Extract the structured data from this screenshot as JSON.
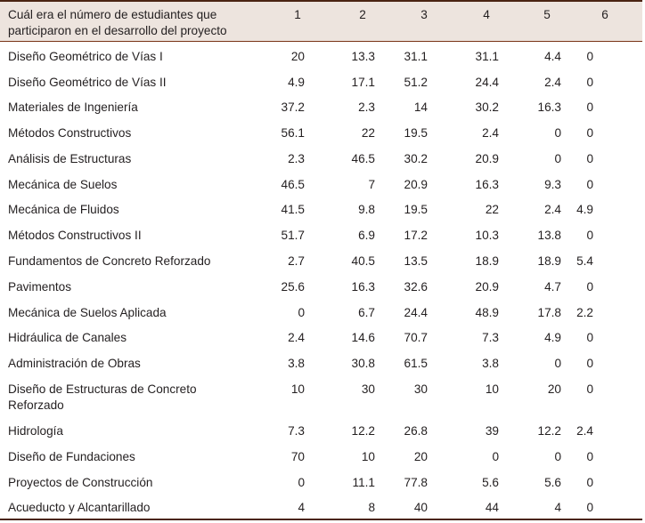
{
  "table": {
    "header": {
      "question": "Cuál era el número de estudiantes que participaron en  el desarrollo del proyecto",
      "question_line1": "Cuál era el número de estudiantes que",
      "question_line2": "participaron en  el desarrollo del proyecto",
      "columns": [
        "1",
        "2",
        "3",
        "4",
        "5",
        "6"
      ]
    },
    "rows": [
      {
        "label": "Diseño Geométrico de Vías I",
        "values": [
          "20",
          "13.3",
          "31.1",
          "31.1",
          "4.4",
          "0"
        ]
      },
      {
        "label": "Diseño Geométrico de Vías II",
        "values": [
          "4.9",
          "17.1",
          "51.2",
          "24.4",
          "2.4",
          "0"
        ]
      },
      {
        "label": "Materiales de Ingeniería",
        "values": [
          "37.2",
          "2.3",
          "14",
          "30.2",
          "16.3",
          "0"
        ]
      },
      {
        "label": "Métodos Constructivos",
        "values": [
          "56.1",
          "22",
          "19.5",
          "2.4",
          "0",
          "0"
        ]
      },
      {
        "label": "Análisis de Estructuras",
        "values": [
          "2.3",
          "46.5",
          "30.2",
          "20.9",
          "0",
          "0"
        ]
      },
      {
        "label": "Mecánica de Suelos",
        "values": [
          "46.5",
          "7",
          "20.9",
          "16.3",
          "9.3",
          "0"
        ]
      },
      {
        "label": "Mecánica de Fluidos",
        "values": [
          "41.5",
          "9.8",
          "19.5",
          "22",
          "2.4",
          "4.9"
        ]
      },
      {
        "label": "Métodos Constructivos II",
        "values": [
          "51.7",
          "6.9",
          "17.2",
          "10.3",
          "13.8",
          "0"
        ]
      },
      {
        "label": "Fundamentos de Concreto Reforzado",
        "values": [
          "2.7",
          "40.5",
          "13.5",
          "18.9",
          "18.9",
          "5.4"
        ]
      },
      {
        "label": "Pavimentos",
        "values": [
          "25.6",
          "16.3",
          "32.6",
          "20.9",
          "4.7",
          "0"
        ]
      },
      {
        "label": "Mecánica de Suelos Aplicada",
        "values": [
          "0",
          "6.7",
          "24.4",
          "48.9",
          "17.8",
          "2.2"
        ]
      },
      {
        "label": "Hidráulica de Canales",
        "values": [
          "2.4",
          "14.6",
          "70.7",
          "7.3",
          "4.9",
          "0"
        ]
      },
      {
        "label": "Administración de Obras",
        "values": [
          "3.8",
          "30.8",
          "61.5",
          "3.8",
          "0",
          "0"
        ]
      },
      {
        "label": "Diseño de Estructuras de Concreto",
        "label_line2": "Reforzado",
        "values": [
          "10",
          "30",
          "30",
          "10",
          "20",
          "0"
        ]
      },
      {
        "label": "Hidrología",
        "values": [
          "7.3",
          "12.2",
          "26.8",
          "39",
          "12.2",
          "2.4"
        ]
      },
      {
        "label": "Diseño de Fundaciones",
        "values": [
          "70",
          "10",
          "20",
          "0",
          "0",
          "0"
        ]
      },
      {
        "label": "Proyectos de Construcción",
        "values": [
          "0",
          "11.1",
          "77.8",
          "5.6",
          "5.6",
          "0"
        ]
      },
      {
        "label": "Acueducto y Alcantarillado",
        "values": [
          "4",
          "8",
          "40",
          "44",
          "4",
          "0"
        ]
      }
    ]
  },
  "colors": {
    "header_bg": "#ede4de",
    "rule": "#4a2412",
    "text": "#231f20"
  }
}
